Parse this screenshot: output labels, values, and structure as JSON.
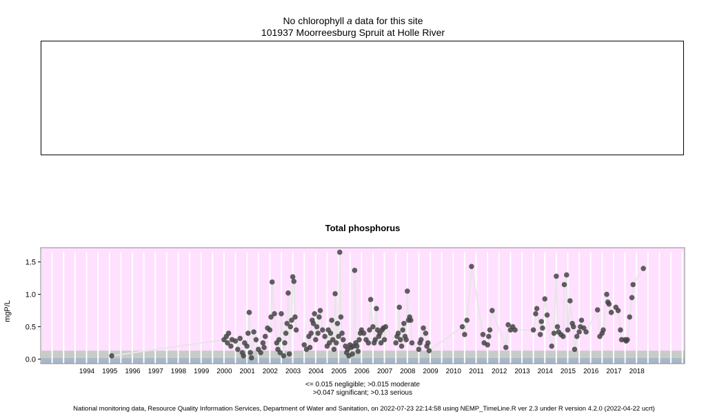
{
  "header": {
    "title_prefix": "No chlorophyll ",
    "title_italic": "a",
    "title_suffix": " data for this site",
    "subtitle": "101937 Moorreesburg Spruit at Holle River"
  },
  "colors": {
    "plot_background": "#ffe0ff",
    "band_serious": "#ffe0ff",
    "band_significant": "#c8ccc8",
    "band_moderate": "#c8ccc8",
    "band_negligible": "#a8b8c8",
    "year_lines": "#ffffff",
    "points": "#444444",
    "trend_line": "#e6e6e6"
  },
  "chart_data": {
    "type": "scatter",
    "title": "Total phosphorus",
    "xlabel": "",
    "ylabel": "mgP/L",
    "xlim": [
      1992.0,
      2020.1
    ],
    "ylim": [
      -0.07,
      1.72
    ],
    "x_ticks": [
      "1994",
      "1995",
      "1996",
      "1997",
      "1998",
      "1999",
      "2000",
      "2001",
      "2002",
      "2003",
      "2004",
      "2005",
      "2006",
      "2007",
      "2008",
      "2009",
      "2010",
      "2011",
      "2012",
      "2013",
      "2014",
      "2015",
      "2016",
      "2017",
      "2018"
    ],
    "y_ticks": [
      "0.0",
      "0.5",
      "1.0",
      "1.5"
    ],
    "y_tick_values": [
      0.0,
      0.5,
      1.0,
      1.5
    ],
    "thresholds": [
      0.015,
      0.047,
      0.13
    ],
    "grid": true,
    "legend_lines": [
      "<= 0.015 negligible; >0.015 moderate",
      ">0.047 significant; >0.13 serious"
    ],
    "points": [
      [
        1995.1,
        0.05
      ],
      [
        2000.0,
        0.3
      ],
      [
        2000.1,
        0.35
      ],
      [
        2000.15,
        0.25
      ],
      [
        2000.2,
        0.4
      ],
      [
        2000.3,
        0.2
      ],
      [
        2000.35,
        0.3
      ],
      [
        2000.5,
        0.28
      ],
      [
        2000.6,
        0.15
      ],
      [
        2000.7,
        0.32
      ],
      [
        2000.8,
        0.1
      ],
      [
        2000.85,
        0.05
      ],
      [
        2000.9,
        0.25
      ],
      [
        2001.0,
        0.2
      ],
      [
        2001.05,
        0.4
      ],
      [
        2001.1,
        0.72
      ],
      [
        2001.15,
        0.1
      ],
      [
        2001.2,
        0.02
      ],
      [
        2001.3,
        0.42
      ],
      [
        2001.4,
        0.3
      ],
      [
        2001.5,
        0.15
      ],
      [
        2001.6,
        0.1
      ],
      [
        2001.7,
        0.25
      ],
      [
        2001.75,
        0.18
      ],
      [
        2001.8,
        0.35
      ],
      [
        2001.9,
        0.48
      ],
      [
        2002.0,
        0.45
      ],
      [
        2002.05,
        0.65
      ],
      [
        2002.1,
        1.19
      ],
      [
        2002.2,
        0.7
      ],
      [
        2002.3,
        0.25
      ],
      [
        2002.35,
        0.15
      ],
      [
        2002.4,
        0.3
      ],
      [
        2002.45,
        0.1
      ],
      [
        2002.5,
        0.7
      ],
      [
        2002.6,
        0.05
      ],
      [
        2002.65,
        0.25
      ],
      [
        2002.7,
        0.4
      ],
      [
        2002.75,
        0.55
      ],
      [
        2002.8,
        1.02
      ],
      [
        2002.85,
        0.08
      ],
      [
        2002.9,
        0.5
      ],
      [
        2002.95,
        0.6
      ],
      [
        2003.0,
        1.27
      ],
      [
        2003.05,
        1.2
      ],
      [
        2003.1,
        0.65
      ],
      [
        2003.15,
        0.45
      ],
      [
        2003.5,
        0.22
      ],
      [
        2003.6,
        0.15
      ],
      [
        2003.7,
        0.35
      ],
      [
        2003.75,
        0.18
      ],
      [
        2003.8,
        0.4
      ],
      [
        2003.85,
        0.6
      ],
      [
        2003.9,
        0.55
      ],
      [
        2003.95,
        0.7
      ],
      [
        2004.0,
        0.3
      ],
      [
        2004.05,
        0.5
      ],
      [
        2004.1,
        0.4
      ],
      [
        2004.15,
        0.65
      ],
      [
        2004.2,
        0.75
      ],
      [
        2004.3,
        0.45
      ],
      [
        2004.4,
        0.35
      ],
      [
        2004.5,
        0.2
      ],
      [
        2004.55,
        0.45
      ],
      [
        2004.6,
        0.25
      ],
      [
        2004.65,
        0.4
      ],
      [
        2004.7,
        0.6
      ],
      [
        2004.75,
        0.3
      ],
      [
        2004.8,
        0.15
      ],
      [
        2004.85,
        1.01
      ],
      [
        2004.9,
        0.25
      ],
      [
        2004.95,
        0.55
      ],
      [
        2005.0,
        0.35
      ],
      [
        2005.05,
        1.65
      ],
      [
        2005.1,
        0.65
      ],
      [
        2005.15,
        0.4
      ],
      [
        2005.2,
        0.3
      ],
      [
        2005.3,
        0.2
      ],
      [
        2005.35,
        0.1
      ],
      [
        2005.4,
        0.15
      ],
      [
        2005.45,
        0.05
      ],
      [
        2005.5,
        0.22
      ],
      [
        2005.55,
        0.18
      ],
      [
        2005.6,
        0.08
      ],
      [
        2005.65,
        0.2
      ],
      [
        2005.7,
        1.37
      ],
      [
        2005.75,
        0.25
      ],
      [
        2005.8,
        0.2
      ],
      [
        2005.85,
        0.12
      ],
      [
        2005.9,
        0.3
      ],
      [
        2005.95,
        0.4
      ],
      [
        2006.0,
        0.45
      ],
      [
        2006.1,
        0.4
      ],
      [
        2006.2,
        0.3
      ],
      [
        2006.3,
        0.25
      ],
      [
        2006.35,
        0.45
      ],
      [
        2006.4,
        0.92
      ],
      [
        2006.5,
        0.5
      ],
      [
        2006.55,
        0.25
      ],
      [
        2006.6,
        0.3
      ],
      [
        2006.65,
        0.78
      ],
      [
        2006.7,
        0.45
      ],
      [
        2006.75,
        0.35
      ],
      [
        2006.8,
        0.4
      ],
      [
        2006.85,
        0.25
      ],
      [
        2006.9,
        0.45
      ],
      [
        2006.95,
        0.48
      ],
      [
        2007.0,
        0.3
      ],
      [
        2007.05,
        0.5
      ],
      [
        2007.5,
        0.25
      ],
      [
        2007.55,
        0.35
      ],
      [
        2007.6,
        0.4
      ],
      [
        2007.65,
        0.8
      ],
      [
        2007.7,
        0.3
      ],
      [
        2007.75,
        0.2
      ],
      [
        2007.8,
        0.45
      ],
      [
        2007.85,
        0.55
      ],
      [
        2007.9,
        0.35
      ],
      [
        2007.95,
        0.3
      ],
      [
        2008.0,
        1.05
      ],
      [
        2008.05,
        0.6
      ],
      [
        2008.1,
        0.65
      ],
      [
        2008.15,
        0.6
      ],
      [
        2008.2,
        0.25
      ],
      [
        2008.5,
        0.15
      ],
      [
        2008.55,
        0.25
      ],
      [
        2008.6,
        0.3
      ],
      [
        2008.7,
        0.48
      ],
      [
        2008.8,
        0.4
      ],
      [
        2008.85,
        0.2
      ],
      [
        2008.9,
        0.25
      ],
      [
        2008.95,
        0.13
      ],
      [
        2010.4,
        0.5
      ],
      [
        2010.5,
        0.38
      ],
      [
        2010.6,
        0.6
      ],
      [
        2010.8,
        1.43
      ],
      [
        2011.3,
        0.38
      ],
      [
        2011.35,
        0.25
      ],
      [
        2011.5,
        0.22
      ],
      [
        2011.55,
        0.35
      ],
      [
        2011.6,
        0.45
      ],
      [
        2011.7,
        0.75
      ],
      [
        2012.3,
        0.18
      ],
      [
        2012.4,
        0.53
      ],
      [
        2012.5,
        0.45
      ],
      [
        2012.6,
        0.5
      ],
      [
        2012.7,
        0.45
      ],
      [
        2013.5,
        0.45
      ],
      [
        2013.6,
        0.7
      ],
      [
        2013.65,
        0.78
      ],
      [
        2013.8,
        0.38
      ],
      [
        2013.85,
        0.58
      ],
      [
        2013.9,
        0.48
      ],
      [
        2014.0,
        0.93
      ],
      [
        2014.1,
        0.68
      ],
      [
        2014.3,
        0.2
      ],
      [
        2014.4,
        0.4
      ],
      [
        2014.5,
        1.28
      ],
      [
        2014.55,
        0.5
      ],
      [
        2014.6,
        0.42
      ],
      [
        2014.7,
        0.38
      ],
      [
        2014.8,
        0.35
      ],
      [
        2014.85,
        1.15
      ],
      [
        2014.95,
        1.3
      ],
      [
        2015.0,
        0.45
      ],
      [
        2015.1,
        0.9
      ],
      [
        2015.2,
        0.55
      ],
      [
        2015.25,
        0.5
      ],
      [
        2015.3,
        0.15
      ],
      [
        2015.4,
        0.35
      ],
      [
        2015.5,
        0.42
      ],
      [
        2015.55,
        0.5
      ],
      [
        2015.6,
        0.6
      ],
      [
        2015.7,
        0.48
      ],
      [
        2015.8,
        0.42
      ],
      [
        2016.3,
        0.76
      ],
      [
        2016.4,
        0.35
      ],
      [
        2016.5,
        0.4
      ],
      [
        2016.55,
        0.45
      ],
      [
        2016.7,
        1.0
      ],
      [
        2016.75,
        0.88
      ],
      [
        2016.8,
        0.85
      ],
      [
        2016.9,
        0.72
      ],
      [
        2017.1,
        0.8
      ],
      [
        2017.2,
        0.75
      ],
      [
        2017.3,
        0.45
      ],
      [
        2017.35,
        0.3
      ],
      [
        2017.5,
        0.3
      ],
      [
        2017.55,
        0.28
      ],
      [
        2017.6,
        0.3
      ],
      [
        2017.7,
        0.65
      ],
      [
        2017.8,
        0.95
      ],
      [
        2017.85,
        1.15
      ],
      [
        2018.3,
        1.4
      ]
    ]
  },
  "footer": {
    "text": "National monitoring data, Resource Quality Information Services, Department of Water and Sanitation, on 2022-07-23 22:14:58 using NEMP_TimeLine.R ver 2.3 under R version 4.2.0 (2022-04-22 ucrt)"
  }
}
